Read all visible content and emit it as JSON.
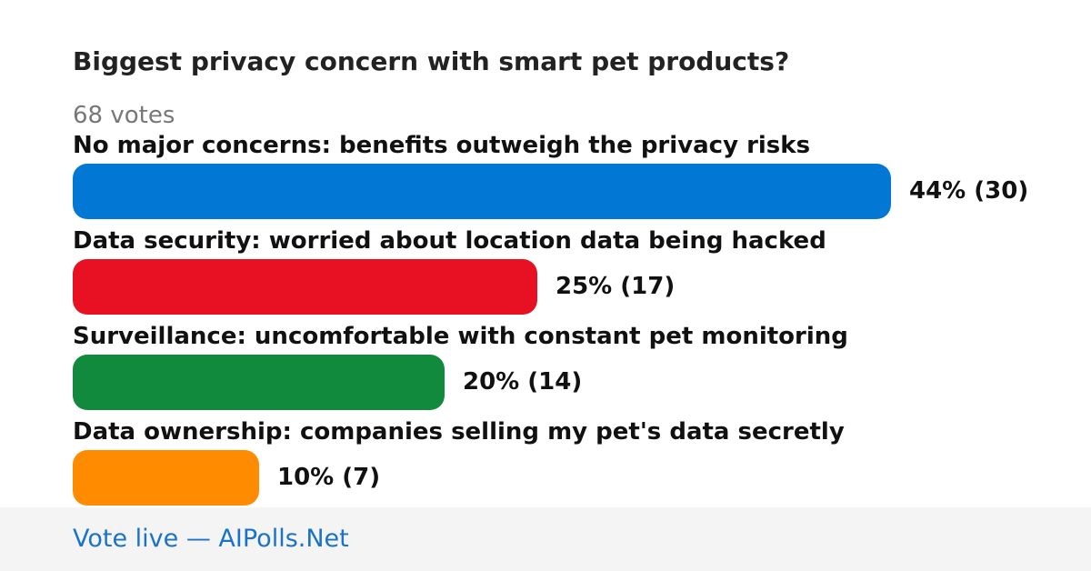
{
  "poll": {
    "title": "Biggest privacy concern with smart pet products?",
    "votes_label": "68 votes"
  },
  "chart_data": {
    "type": "bar",
    "orientation": "horizontal",
    "title": "Biggest privacy concern with smart pet products?",
    "categories": [
      "No major concerns: benefits outweigh the privacy risks",
      "Data security: worried about location data being hacked",
      "Surveillance: uncomfortable with constant pet monitoring",
      "Data ownership: companies selling my pet's data secretly"
    ],
    "series": [
      {
        "percent": [
          44,
          25,
          20,
          10
        ],
        "votes": [
          30,
          17,
          14,
          7
        ]
      }
    ],
    "value_labels": [
      "44% (30)",
      "25% (17)",
      "20% (14)",
      "10% (7)"
    ],
    "colors": [
      "#0277d4",
      "#e81123",
      "#118a3e",
      "#ff8c00"
    ],
    "xlim": [
      0,
      44
    ],
    "grid": false
  },
  "footer": {
    "link_label": "Vote live — AIPolls.Net",
    "link_color": "#1a73c7"
  }
}
